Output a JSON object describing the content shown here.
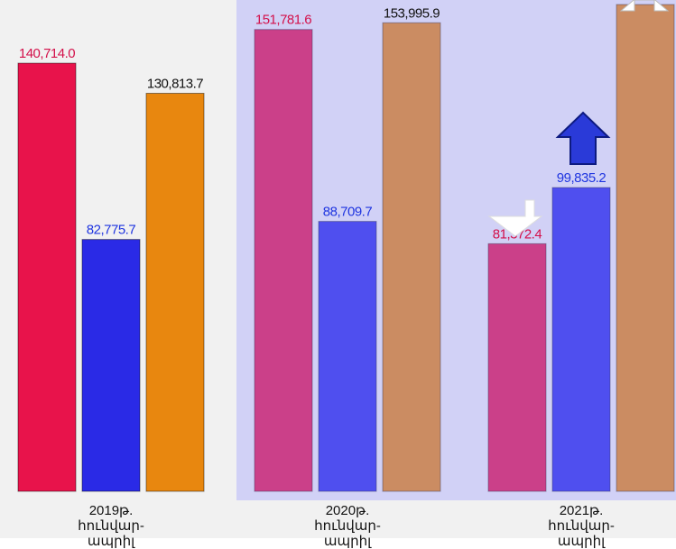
{
  "chart_data": {
    "type": "bar",
    "categories": [
      "2019թ. հունվար-ապրիլ",
      "2020թ. հունվար-ապրիլ",
      "2021թ. հունվար-ապրիլ"
    ],
    "ylim": [
      0,
      160000
    ],
    "series": [
      {
        "color": "#e8134b",
        "label_color": "#d3104a",
        "values": [
          140714.0,
          151781.6,
          81372.4
        ],
        "value_labels": [
          "140,714.0",
          "151,781.6",
          "81,372.4"
        ]
      },
      {
        "color": "#2a2ae6",
        "label_color": "#1f35e0",
        "values": [
          82775.7,
          88709.7,
          99835.2
        ],
        "value_labels": [
          "82,775.7",
          "88,709.7",
          "99,835.2"
        ]
      },
      {
        "color": "#e8870f",
        "label_color": "#111111",
        "values": [
          130813.7,
          153995.9,
          160000
        ],
        "value_labels": [
          "130,813.7",
          "153,995.9",
          null
        ]
      }
    ]
  }
}
